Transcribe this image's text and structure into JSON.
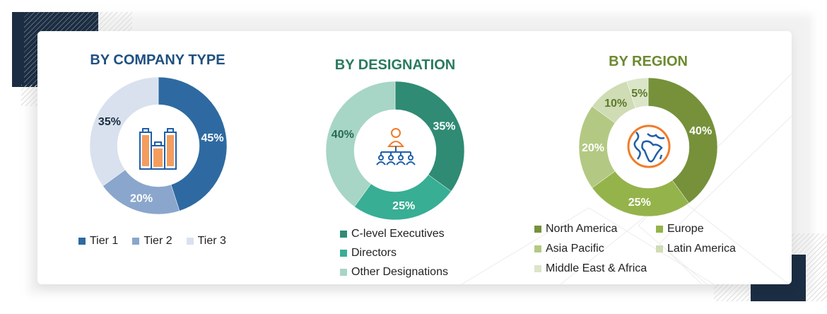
{
  "chart_data": [
    {
      "type": "pie",
      "title": "BY COMPANY TYPE",
      "title_color": "#1f5080",
      "categories": [
        "Tier 1",
        "Tier 2",
        "Tier 3"
      ],
      "values": [
        45,
        20,
        35
      ],
      "labels": [
        "45%",
        "20%",
        "35%"
      ],
      "colors": [
        "#2e6aa1",
        "#8aa6cc",
        "#d9e1ee"
      ],
      "label_colors": [
        "#ffffff",
        "#ffffff",
        "#1b2d42"
      ],
      "center_icon": "buildings-icon",
      "legend": "bottom"
    },
    {
      "type": "pie",
      "title": "BY DESIGNATION",
      "title_color": "#2a7a60",
      "categories": [
        "C-level Executives",
        "Directors",
        "Other Designations"
      ],
      "values": [
        35,
        25,
        40
      ],
      "labels": [
        "35%",
        "25%",
        "40%"
      ],
      "colors": [
        "#2f8b74",
        "#38ae94",
        "#a7d5c6"
      ],
      "label_colors": [
        "#ffffff",
        "#ffffff",
        "#2a6a55"
      ],
      "center_icon": "org-hierarchy-icon",
      "legend": "bottom"
    },
    {
      "type": "pie",
      "title": "BY REGION",
      "title_color": "#6b8a2e",
      "categories": [
        "North America",
        "Europe",
        "Asia Pacific",
        "Latin America",
        "Middle East & Africa"
      ],
      "values": [
        40,
        25,
        20,
        10,
        5
      ],
      "labels": [
        "40%",
        "25%",
        "20%",
        "10%",
        "5%"
      ],
      "colors": [
        "#76913a",
        "#95b34b",
        "#b3c983",
        "#cfdcb4",
        "#dbe5c8"
      ],
      "label_colors": [
        "#ffffff",
        "#ffffff",
        "#ffffff",
        "#5d7a2a",
        "#5d7a2a"
      ],
      "center_icon": "globe-icon",
      "legend": "bottom"
    }
  ]
}
